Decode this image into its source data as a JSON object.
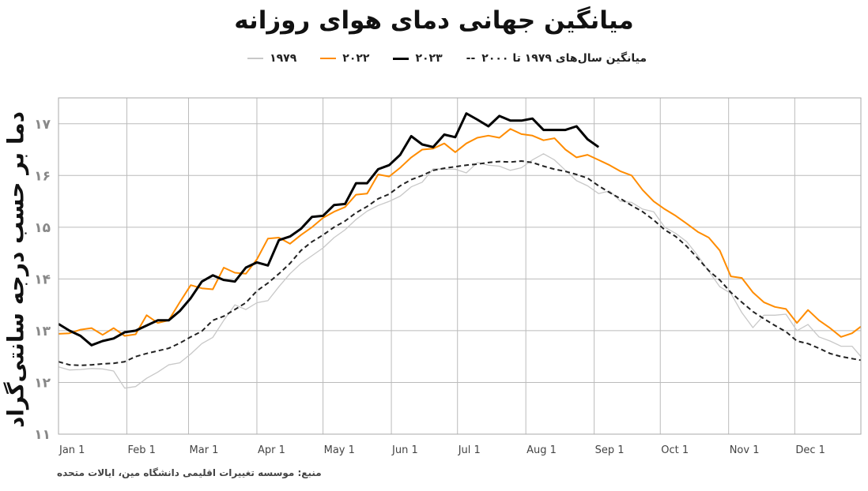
{
  "chart_data": {
    "type": "line",
    "title": "میانگین جهانی دمای هوای روزانه",
    "ylabel": "دما بر حسب درجه سانتی‌گراد",
    "xlabel": "",
    "source": "منبع: موسسه تغییرات اقلیمی دانشگاه مین، ایالات متحده",
    "ylim": [
      11,
      17.5
    ],
    "yticks": [
      11,
      12,
      13,
      14,
      15,
      16,
      17
    ],
    "ytick_labels": [
      "۱۱",
      "۱۲",
      "۱۳",
      "۱۴",
      "۱۵",
      "۱۶",
      "۱۷"
    ],
    "xticks": [
      "01-01",
      "02-01",
      "03-01",
      "04-01",
      "05-01",
      "06-01",
      "07-01",
      "08-01",
      "09-01",
      "10-01",
      "11-01",
      "12-01"
    ],
    "xtick_labels": [
      "Jan 1",
      "Feb 1",
      "Mar 1",
      "Apr 1",
      "May 1",
      "Jun 1",
      "Jul 1",
      "Aug 1",
      "Sep 1",
      "Oct 1",
      "Nov 1",
      "Dec 1"
    ],
    "xlim": [
      "01-01",
      "12-31"
    ],
    "grid": true,
    "legend_position": "top",
    "x": [
      "01-01",
      "01-06",
      "01-11",
      "01-16",
      "01-21",
      "01-26",
      "01-31",
      "02-05",
      "02-10",
      "02-15",
      "02-20",
      "02-25",
      "03-02",
      "03-07",
      "03-12",
      "03-17",
      "03-22",
      "03-27",
      "04-01",
      "04-06",
      "04-11",
      "04-16",
      "04-21",
      "04-26",
      "05-01",
      "05-06",
      "05-11",
      "05-16",
      "05-21",
      "05-26",
      "05-31",
      "06-05",
      "06-10",
      "06-15",
      "06-20",
      "06-25",
      "06-30",
      "07-05",
      "07-10",
      "07-15",
      "07-20",
      "07-25",
      "07-30",
      "08-04",
      "08-09",
      "08-14",
      "08-19",
      "08-24",
      "08-29",
      "09-03",
      "09-08",
      "09-13",
      "09-18",
      "09-23",
      "09-28",
      "10-03",
      "10-08",
      "10-13",
      "10-18",
      "10-23",
      "10-28",
      "11-02",
      "11-07",
      "11-12",
      "11-17",
      "11-22",
      "11-27",
      "12-02",
      "12-07",
      "12-12",
      "12-17",
      "12-22",
      "12-27",
      "12-31"
    ],
    "series": [
      {
        "name": "۱۹۷۹",
        "color": "#c8c8c8",
        "style": "solid",
        "values": [
          12.3,
          12.24,
          12.25,
          12.27,
          12.26,
          12.22,
          11.89,
          11.92,
          12.08,
          12.2,
          12.34,
          12.38,
          12.55,
          12.75,
          12.87,
          13.2,
          13.5,
          13.41,
          13.54,
          13.58,
          13.85,
          14.1,
          14.3,
          14.45,
          14.6,
          14.8,
          14.95,
          15.15,
          15.31,
          15.42,
          15.5,
          15.6,
          15.78,
          15.87,
          16.13,
          16.12,
          16.12,
          16.05,
          16.25,
          16.2,
          16.18,
          16.1,
          16.15,
          16.3,
          16.42,
          16.3,
          16.1,
          15.9,
          15.8,
          15.65,
          15.7,
          15.5,
          15.48,
          15.35,
          15.3,
          15.0,
          14.88,
          14.72,
          14.45,
          14.15,
          13.85,
          13.72,
          13.35,
          13.06,
          13.3,
          13.3,
          13.32,
          13.0,
          13.12,
          12.88,
          12.8,
          12.7,
          12.7,
          12.5
        ]
      },
      {
        "name": "۲۰۲۲",
        "color": "#ff8c00",
        "style": "solid",
        "values": [
          12.94,
          12.95,
          13.02,
          13.05,
          12.92,
          13.05,
          12.9,
          12.93,
          13.3,
          13.15,
          13.2,
          13.55,
          13.88,
          13.82,
          13.8,
          14.22,
          14.12,
          14.1,
          14.38,
          14.78,
          14.8,
          14.68,
          14.85,
          15.0,
          15.18,
          15.3,
          15.39,
          15.63,
          15.65,
          16.02,
          15.98,
          16.15,
          16.35,
          16.5,
          16.52,
          16.62,
          16.45,
          16.62,
          16.73,
          16.77,
          16.73,
          16.9,
          16.8,
          16.77,
          16.68,
          16.72,
          16.5,
          16.35,
          16.4,
          16.3,
          16.2,
          16.08,
          16.0,
          15.72,
          15.5,
          15.35,
          15.22,
          15.07,
          14.91,
          14.8,
          14.55,
          14.05,
          14.02,
          13.74,
          13.55,
          13.46,
          13.42,
          13.15,
          13.4,
          13.2,
          13.05,
          12.88,
          12.95,
          13.08
        ]
      },
      {
        "name": "۲۰۲۳",
        "color": "#000000",
        "style": "solid",
        "values": [
          13.13,
          13.0,
          12.9,
          12.72,
          12.8,
          12.85,
          12.97,
          13.0,
          13.1,
          13.2,
          13.2,
          13.38,
          13.63,
          13.95,
          14.07,
          13.98,
          13.95,
          14.22,
          14.32,
          14.26,
          14.75,
          14.82,
          14.97,
          15.2,
          15.22,
          15.43,
          15.45,
          15.85,
          15.85,
          16.12,
          16.2,
          16.4,
          16.76,
          16.6,
          16.55,
          16.79,
          16.74,
          17.2,
          17.08,
          16.95,
          17.15,
          17.06,
          17.06,
          17.1,
          16.88,
          16.88,
          16.88,
          16.95,
          16.7,
          16.55,
          null,
          null,
          null,
          null,
          null,
          null,
          null,
          null,
          null,
          null,
          null,
          null,
          null,
          null,
          null,
          null,
          null,
          null,
          null,
          null,
          null,
          null,
          null,
          null
        ]
      },
      {
        "name": "میانگین سال‌های ۱۹۷۹ تا ۲۰۰۰",
        "color": "#222222",
        "style": "dashed",
        "values": [
          12.4,
          12.34,
          12.33,
          12.34,
          12.36,
          12.37,
          12.4,
          12.5,
          12.56,
          12.61,
          12.66,
          12.76,
          12.88,
          12.99,
          13.2,
          13.28,
          13.41,
          13.54,
          13.77,
          13.92,
          14.1,
          14.3,
          14.55,
          14.72,
          14.85,
          15.0,
          15.12,
          15.28,
          15.4,
          15.55,
          15.64,
          15.8,
          15.92,
          16.0,
          16.1,
          16.14,
          16.17,
          16.2,
          16.22,
          16.25,
          16.27,
          16.26,
          16.28,
          16.25,
          16.18,
          16.12,
          16.08,
          16.02,
          15.95,
          15.8,
          15.67,
          15.55,
          15.42,
          15.3,
          15.14,
          14.95,
          14.82,
          14.63,
          14.4,
          14.16,
          13.98,
          13.74,
          13.55,
          13.37,
          13.23,
          13.1,
          12.98,
          12.8,
          12.75,
          12.66,
          12.56,
          12.5,
          12.46,
          12.43
        ]
      }
    ],
    "legend": [
      {
        "label": "میانگین سال‌های ۱۹۷۹ تا ۲۰۰۰",
        "marker": "--"
      },
      {
        "label": "۲۰۲۳",
        "color": "#000000"
      },
      {
        "label": "۲۰۲۲",
        "color": "#ff8c00"
      },
      {
        "label": "۱۹۷۹",
        "color": "#c8c8c8"
      }
    ]
  }
}
